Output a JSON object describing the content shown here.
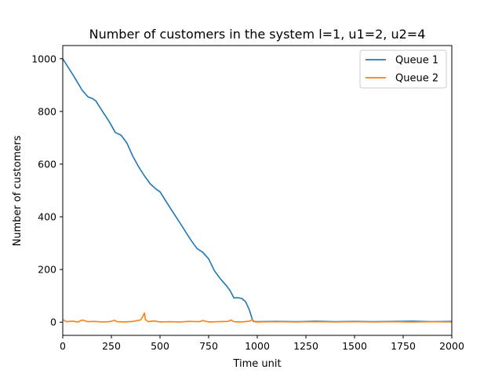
{
  "chart_data": {
    "type": "line",
    "title": "Number of customers in the system l=1, u1=2, u2=4",
    "xlabel": "Time unit",
    "ylabel": "Number of customers",
    "xlim": [
      0,
      2000
    ],
    "ylim": [
      -50,
      1050
    ],
    "xticks": [
      0,
      250,
      500,
      750,
      1000,
      1250,
      1500,
      1750,
      2000
    ],
    "yticks": [
      0,
      200,
      400,
      600,
      800,
      1000
    ],
    "grid": false,
    "legend": "top-right",
    "series": [
      {
        "name": "Queue 1",
        "color": "#1f77b4",
        "x": [
          0,
          30,
          60,
          100,
          130,
          150,
          170,
          200,
          240,
          270,
          300,
          330,
          360,
          390,
          420,
          450,
          480,
          500,
          530,
          560,
          600,
          630,
          660,
          690,
          720,
          750,
          780,
          810,
          840,
          860,
          880,
          900,
          920,
          940,
          960,
          975,
          980,
          1000,
          1100,
          1200,
          1300,
          1400,
          1500,
          1600,
          1700,
          1800,
          1900,
          2000
        ],
        "y": [
          1000,
          965,
          930,
          880,
          855,
          850,
          840,
          805,
          760,
          720,
          710,
          680,
          630,
          590,
          555,
          525,
          505,
          495,
          460,
          425,
          380,
          345,
          310,
          280,
          265,
          240,
          195,
          165,
          140,
          120,
          92,
          93,
          90,
          78,
          45,
          10,
          3,
          2,
          3,
          2,
          4,
          2,
          3,
          2,
          3,
          4,
          2,
          3
        ]
      },
      {
        "name": "Queue 2",
        "color": "#ff7f0e",
        "x": [
          0,
          20,
          50,
          80,
          100,
          130,
          160,
          200,
          240,
          265,
          280,
          320,
          360,
          400,
          410,
          420,
          425,
          440,
          470,
          500,
          550,
          600,
          650,
          700,
          720,
          750,
          800,
          850,
          865,
          880,
          920,
          960,
          975,
          985,
          1000,
          1100,
          1200,
          1300,
          1400,
          1500,
          1600,
          1700,
          1800,
          1900,
          2000
        ],
        "y": [
          10,
          2,
          4,
          1,
          8,
          2,
          3,
          1,
          2,
          7,
          2,
          1,
          3,
          8,
          20,
          35,
          10,
          2,
          5,
          1,
          2,
          1,
          3,
          2,
          6,
          1,
          2,
          3,
          8,
          2,
          1,
          4,
          10,
          2,
          1,
          2,
          1,
          2,
          1,
          2,
          1,
          2,
          1,
          2,
          1
        ]
      }
    ]
  }
}
